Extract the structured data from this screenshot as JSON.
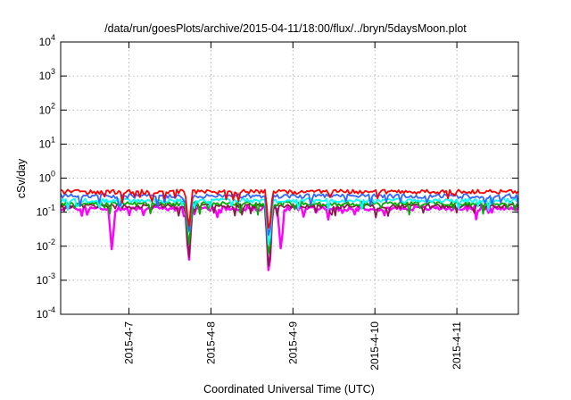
{
  "chart_data": {
    "type": "line",
    "title": "/data/run/goesPlots/archive/2015-04-11/18:00/flux/../bryn/5daysMoon.plot",
    "xlabel": "Coordinated Universal Time (UTC)",
    "ylabel": "cSv/day",
    "y_scale": "log",
    "ylim": [
      0.0001,
      10000
    ],
    "y_ticks": [
      {
        "exp": -4,
        "base": "10",
        "sup": "-4"
      },
      {
        "exp": -3,
        "base": "10",
        "sup": "-3"
      },
      {
        "exp": -2,
        "base": "10",
        "sup": "-2"
      },
      {
        "exp": -1,
        "base": "10",
        "sup": "-1"
      },
      {
        "exp": 0,
        "base": "10",
        "sup": "0"
      },
      {
        "exp": 1,
        "base": "10",
        "sup": "1"
      },
      {
        "exp": 2,
        "base": "10",
        "sup": "2"
      },
      {
        "exp": 3,
        "base": "10",
        "sup": "3"
      },
      {
        "exp": 4,
        "base": "10",
        "sup": "4"
      }
    ],
    "xlim": [
      "2015-04-06T04:00",
      "2015-04-11T18:00"
    ],
    "x_ticks": [
      {
        "t": "2015-04-07T00:00",
        "label": "2015-4-7"
      },
      {
        "t": "2015-04-08T00:00",
        "label": "2015-4-8"
      },
      {
        "t": "2015-04-09T00:00",
        "label": "2015-4-9"
      },
      {
        "t": "2015-04-10T00:00",
        "label": "2015-4-10"
      },
      {
        "t": "2015-04-11T00:00",
        "label": "2015-4-11"
      }
    ],
    "grid": true,
    "series": [
      {
        "color": "#ff00ff",
        "level": 0.13,
        "dips": [
          {
            "t": "2015-04-06T19:00",
            "v": 0.007
          },
          {
            "t": "2015-04-07T17:30",
            "v": 0.0025
          },
          {
            "t": "2015-04-08T17:00",
            "v": 0.0008
          },
          {
            "t": "2015-04-08T20:30",
            "v": 0.007
          }
        ]
      },
      {
        "color": "#8b1a4a",
        "level": 0.15,
        "dips": [
          {
            "t": "2015-04-07T17:30",
            "v": 0.003
          },
          {
            "t": "2015-04-08T17:00",
            "v": 0.0011
          }
        ]
      },
      {
        "color": "#00aa00",
        "level": 0.18,
        "dips": [
          {
            "t": "2015-04-07T17:30",
            "v": 0.008
          },
          {
            "t": "2015-04-08T17:00",
            "v": 0.003
          }
        ]
      },
      {
        "color": "#00ffff",
        "level": 0.22,
        "dips": [
          {
            "t": "2015-04-07T17:30",
            "v": 0.02
          },
          {
            "t": "2015-04-08T17:00",
            "v": 0.006
          }
        ]
      },
      {
        "color": "#3366ff",
        "level": 0.3,
        "dips": [
          {
            "t": "2015-04-07T17:30",
            "v": 0.02
          },
          {
            "t": "2015-04-08T17:00",
            "v": 0.012
          }
        ]
      },
      {
        "color": "#ff0000",
        "level": 0.4,
        "dips": [
          {
            "t": "2015-04-07T17:30",
            "v": 0.03
          },
          {
            "t": "2015-04-08T17:00",
            "v": 0.02
          }
        ]
      }
    ]
  }
}
